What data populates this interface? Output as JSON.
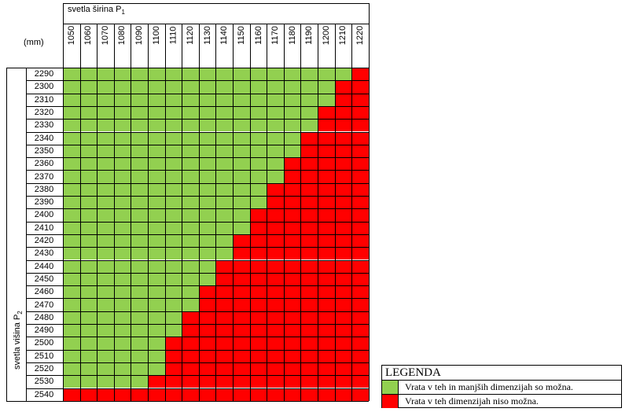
{
  "table": {
    "unit_label": "(mm)",
    "width_label": "svetla širina P",
    "width_sub": "1",
    "height_label": "svetla višina P",
    "height_sub": "2",
    "widths": [
      1050,
      1060,
      1070,
      1080,
      1090,
      1100,
      1110,
      1120,
      1130,
      1140,
      1150,
      1160,
      1170,
      1180,
      1190,
      1200,
      1210,
      1220
    ],
    "heights": [
      2290,
      2300,
      2310,
      2320,
      2330,
      2340,
      2350,
      2360,
      2370,
      2380,
      2390,
      2400,
      2410,
      2420,
      2430,
      2440,
      2450,
      2460,
      2470,
      2480,
      2490,
      2500,
      2510,
      2520,
      2530,
      2540
    ],
    "green_counts_per_row": [
      17,
      16,
      16,
      15,
      15,
      14,
      14,
      13,
      13,
      12,
      12,
      11,
      11,
      10,
      10,
      9,
      9,
      8,
      8,
      7,
      7,
      6,
      6,
      6,
      5,
      0
    ],
    "colors": {
      "possible": "#92d050",
      "not_possible": "#ff0000",
      "grid": "#000000"
    }
  },
  "legend": {
    "title": "LEGENDA",
    "possible_text": "Vrata v teh in manjših dimenzijah so možna.",
    "not_possible_text": "Vrata v teh dimenzijah niso možna."
  }
}
